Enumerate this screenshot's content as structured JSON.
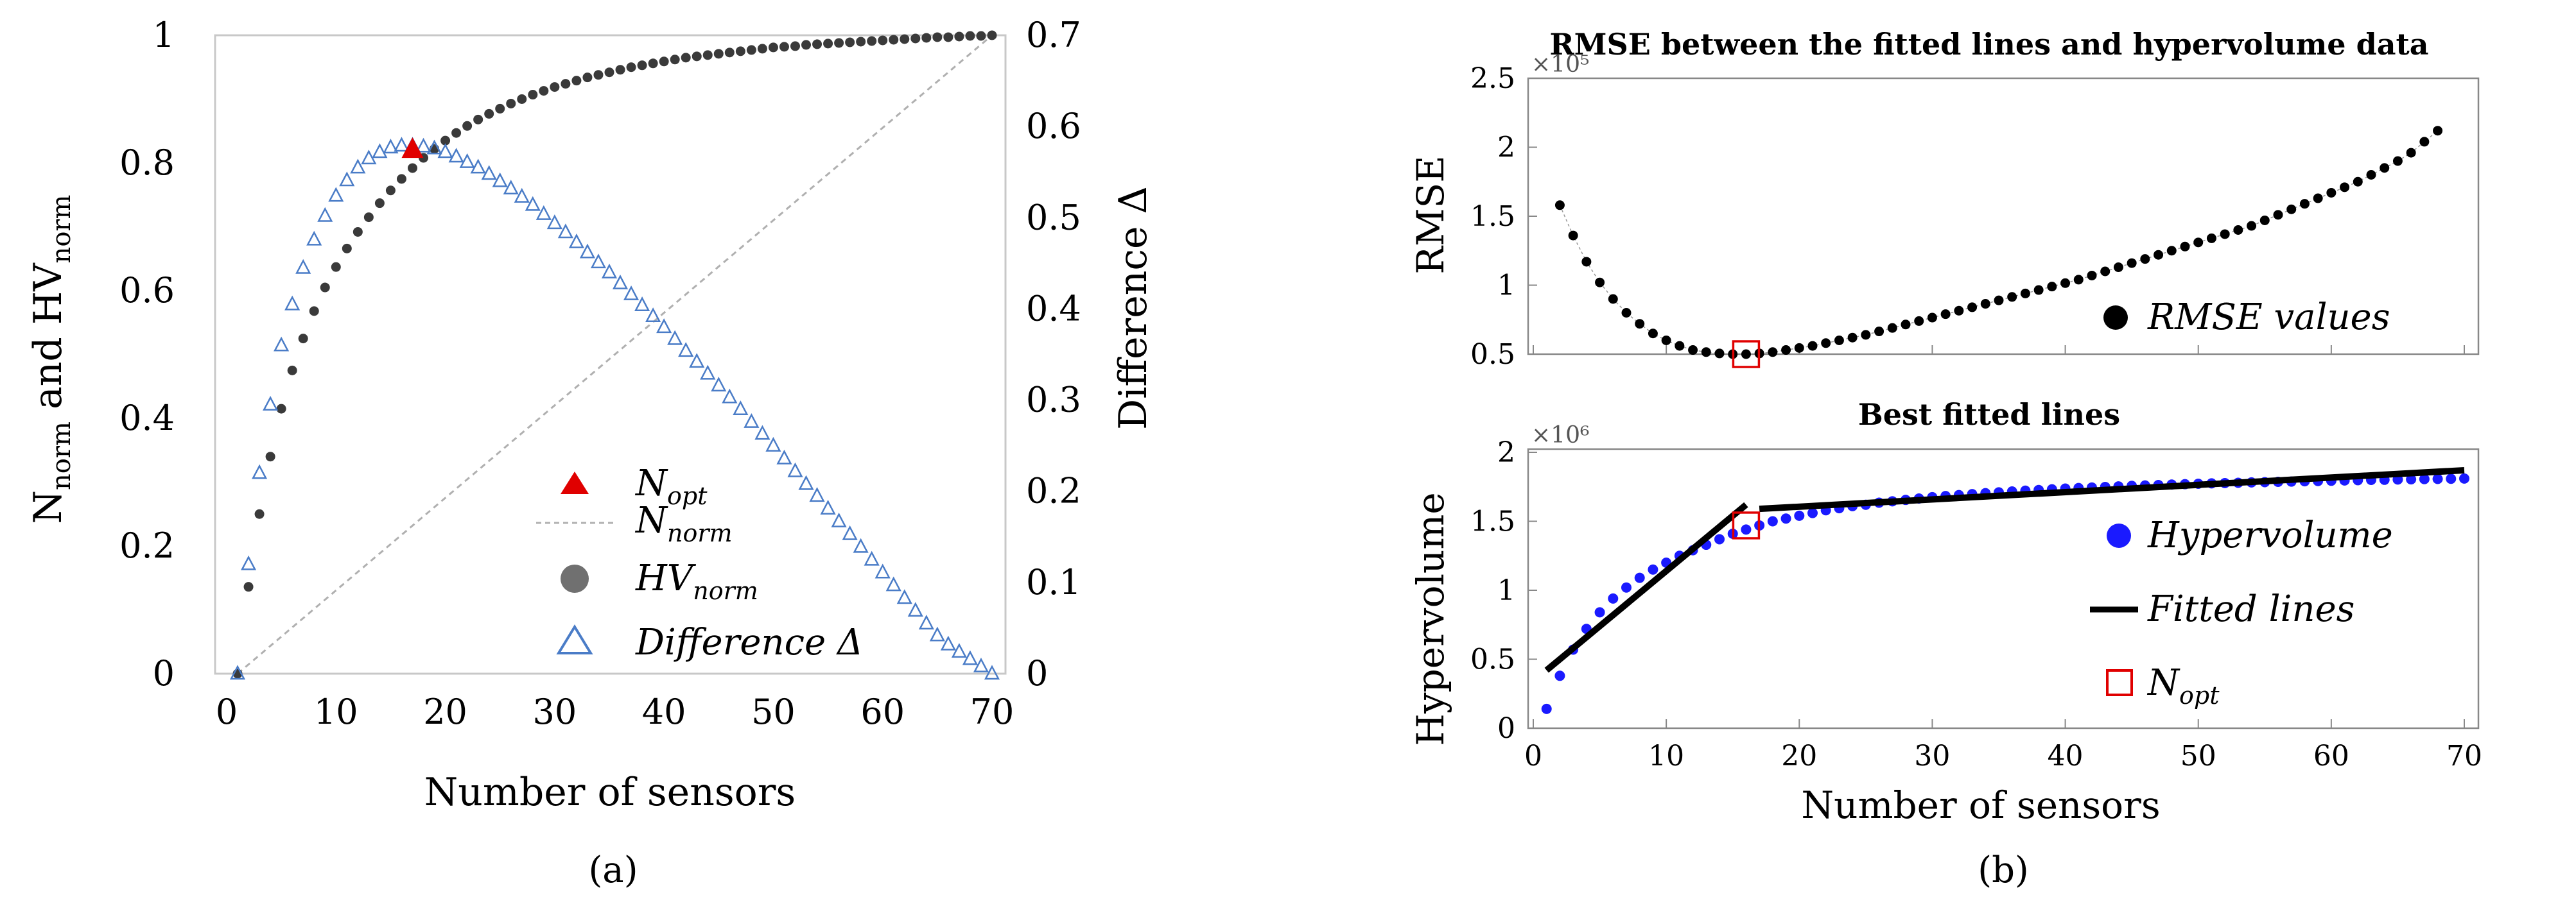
{
  "captions": {
    "a": "(a)",
    "b": "(b)"
  },
  "chart_data": [
    {
      "id": "a",
      "type": "scatter",
      "xlabel": "Number of sensors",
      "ylabel_left": {
        "base1": "N",
        "sub1": "norm",
        "mid": " and HV",
        "sub2": "norm"
      },
      "ylabel_right": "Difference Δ",
      "xlim": [
        0,
        70
      ],
      "ylim_left": [
        0,
        1
      ],
      "ylim_right": [
        0,
        0.7
      ],
      "xticks": [
        "0",
        "10",
        "20",
        "30",
        "40",
        "50",
        "60",
        "70"
      ],
      "yticks_left": [
        "0",
        "0.2",
        "0.4",
        "0.6",
        "0.8",
        "1"
      ],
      "yticks_right": [
        "0",
        "0.1",
        "0.2",
        "0.3",
        "0.4",
        "0.5",
        "0.6",
        "0.7"
      ],
      "legend": [
        {
          "key": "N",
          "sub": "opt"
        },
        {
          "key": "N",
          "sub": "norm"
        },
        {
          "key": "HV",
          "sub": "norm"
        },
        {
          "key": "Difference Δ",
          "sub": ""
        }
      ],
      "series": {
        "n_norm": {
          "x": [
            1,
            70
          ],
          "y": [
            0,
            1
          ],
          "color": "#b0b0b0"
        },
        "hv_norm": {
          "x": [
            1,
            2,
            3,
            4,
            5,
            6,
            7,
            8,
            9,
            10,
            11,
            12,
            13,
            14,
            15,
            16,
            17,
            18,
            19,
            20,
            21,
            22,
            23,
            24,
            25,
            26,
            27,
            28,
            29,
            30,
            31,
            32,
            33,
            34,
            35,
            36,
            37,
            38,
            39,
            40,
            41,
            42,
            43,
            44,
            45,
            46,
            47,
            48,
            49,
            50,
            51,
            52,
            53,
            54,
            55,
            56,
            57,
            58,
            59,
            60,
            61,
            62,
            63,
            64,
            65,
            66,
            67,
            68,
            69,
            70
          ],
          "y": [
            0,
            0.136,
            0.25,
            0.34,
            0.415,
            0.475,
            0.525,
            0.568,
            0.605,
            0.637,
            0.666,
            0.692,
            0.715,
            0.737,
            0.757,
            0.775,
            0.792,
            0.808,
            0.822,
            0.835,
            0.847,
            0.858,
            0.868,
            0.877,
            0.885,
            0.893,
            0.9,
            0.907,
            0.913,
            0.919,
            0.924,
            0.929,
            0.934,
            0.938,
            0.942,
            0.946,
            0.95,
            0.953,
            0.956,
            0.959,
            0.962,
            0.965,
            0.967,
            0.969,
            0.971,
            0.973,
            0.975,
            0.977,
            0.979,
            0.981,
            0.982,
            0.983,
            0.985,
            0.986,
            0.987,
            0.988,
            0.989,
            0.99,
            0.991,
            0.992,
            0.993,
            0.994,
            0.995,
            0.996,
            0.997,
            0.997,
            0.998,
            0.999,
            0.999,
            1.0
          ],
          "color": "#3a3a3a"
        },
        "difference": {
          "x": [
            1,
            2,
            3,
            4,
            5,
            6,
            7,
            8,
            9,
            10,
            11,
            12,
            13,
            14,
            15,
            16,
            17,
            18,
            19,
            20,
            21,
            22,
            23,
            24,
            25,
            26,
            27,
            28,
            29,
            30,
            31,
            32,
            33,
            34,
            35,
            36,
            37,
            38,
            39,
            40,
            41,
            42,
            43,
            44,
            45,
            46,
            47,
            48,
            49,
            50,
            51,
            52,
            53,
            54,
            55,
            56,
            57,
            58,
            59,
            60,
            61,
            62,
            63,
            64,
            65,
            66,
            67,
            68,
            69,
            70
          ],
          "y": [
            0,
            0.12,
            0.22,
            0.295,
            0.36,
            0.405,
            0.445,
            0.476,
            0.502,
            0.524,
            0.541,
            0.555,
            0.565,
            0.572,
            0.577,
            0.579,
            0.579,
            0.578,
            0.576,
            0.572,
            0.567,
            0.561,
            0.555,
            0.548,
            0.54,
            0.532,
            0.523,
            0.514,
            0.504,
            0.494,
            0.484,
            0.473,
            0.462,
            0.451,
            0.44,
            0.428,
            0.416,
            0.404,
            0.392,
            0.38,
            0.367,
            0.354,
            0.342,
            0.329,
            0.316,
            0.303,
            0.29,
            0.276,
            0.263,
            0.25,
            0.236,
            0.222,
            0.208,
            0.195,
            0.181,
            0.167,
            0.153,
            0.139,
            0.125,
            0.111,
            0.097,
            0.083,
            0.069,
            0.055,
            0.042,
            0.032,
            0.024,
            0.016,
            0.008,
            0.0
          ],
          "color": "#4a7cc7"
        },
        "n_opt": {
          "x": 17,
          "y": 0.82,
          "color": "#e00000"
        }
      }
    },
    {
      "id": "b-top",
      "type": "scatter",
      "title": "RMSE between the fitted lines and hypervolume data",
      "ylabel": "RMSE",
      "exponent": "×10⁵",
      "xlim": [
        0,
        70
      ],
      "ylim": [
        0.5,
        2.5
      ],
      "yticks": [
        "0.5",
        "1",
        "1.5",
        "2",
        "2.5"
      ],
      "legend": [
        "RMSE values"
      ],
      "series": {
        "rmse": {
          "x": [
            2,
            3,
            4,
            5,
            6,
            7,
            8,
            9,
            10,
            11,
            12,
            13,
            14,
            15,
            16,
            17,
            18,
            19,
            20,
            21,
            22,
            23,
            24,
            25,
            26,
            27,
            28,
            29,
            30,
            31,
            32,
            33,
            34,
            35,
            36,
            37,
            38,
            39,
            40,
            41,
            42,
            43,
            44,
            45,
            46,
            47,
            48,
            49,
            50,
            51,
            52,
            53,
            54,
            55,
            56,
            57,
            58,
            59,
            60,
            61,
            62,
            63,
            64,
            65,
            66,
            67,
            68
          ],
          "y": [
            1.58,
            1.36,
            1.17,
            1.02,
            0.9,
            0.8,
            0.72,
            0.65,
            0.6,
            0.56,
            0.53,
            0.515,
            0.505,
            0.5,
            0.5,
            0.505,
            0.515,
            0.53,
            0.545,
            0.56,
            0.58,
            0.6,
            0.62,
            0.64,
            0.665,
            0.69,
            0.715,
            0.74,
            0.765,
            0.79,
            0.815,
            0.84,
            0.865,
            0.89,
            0.915,
            0.94,
            0.965,
            0.99,
            1.015,
            1.04,
            1.07,
            1.1,
            1.13,
            1.16,
            1.19,
            1.22,
            1.25,
            1.28,
            1.31,
            1.34,
            1.37,
            1.4,
            1.43,
            1.47,
            1.51,
            1.55,
            1.59,
            1.63,
            1.67,
            1.71,
            1.75,
            1.8,
            1.85,
            1.9,
            1.96,
            2.04,
            2.12
          ],
          "color": "#000000"
        },
        "n_opt_marker": {
          "x": 16,
          "y": 0.5,
          "color": "#e00000"
        }
      }
    },
    {
      "id": "b-bottom",
      "type": "scatter",
      "title": "Best fitted lines",
      "ylabel": "Hypervolume",
      "xlabel": "Number of sensors",
      "exponent": "×10⁶",
      "xlim": [
        0,
        70
      ],
      "ylim": [
        0,
        2
      ],
      "xticks": [
        "0",
        "10",
        "20",
        "30",
        "40",
        "50",
        "60",
        "70"
      ],
      "yticks": [
        "0",
        "0.5",
        "1",
        "1.5",
        "2"
      ],
      "legend": [
        {
          "key": "Hypervolume",
          "sub": ""
        },
        {
          "key": "Fitted lines",
          "sub": ""
        },
        {
          "key": "N",
          "sub": "opt"
        }
      ],
      "series": {
        "hypervolume": {
          "x": [
            1,
            2,
            3,
            4,
            5,
            6,
            7,
            8,
            9,
            10,
            11,
            12,
            13,
            14,
            15,
            16,
            17,
            18,
            19,
            20,
            21,
            22,
            23,
            24,
            25,
            26,
            27,
            28,
            29,
            30,
            31,
            32,
            33,
            34,
            35,
            36,
            37,
            38,
            39,
            40,
            41,
            42,
            43,
            44,
            45,
            46,
            47,
            48,
            49,
            50,
            51,
            52,
            53,
            54,
            55,
            56,
            57,
            58,
            59,
            60,
            61,
            62,
            63,
            64,
            65,
            66,
            67,
            68,
            69,
            70
          ],
          "y": [
            0.14,
            0.38,
            0.57,
            0.72,
            0.84,
            0.94,
            1.02,
            1.09,
            1.15,
            1.2,
            1.25,
            1.29,
            1.33,
            1.37,
            1.41,
            1.44,
            1.47,
            1.5,
            1.52,
            1.54,
            1.56,
            1.58,
            1.595,
            1.61,
            1.62,
            1.635,
            1.645,
            1.655,
            1.665,
            1.675,
            1.683,
            1.69,
            1.697,
            1.704,
            1.71,
            1.716,
            1.722,
            1.727,
            1.732,
            1.737,
            1.741,
            1.745,
            1.749,
            1.753,
            1.757,
            1.76,
            1.763,
            1.766,
            1.769,
            1.772,
            1.775,
            1.777,
            1.779,
            1.782,
            1.784,
            1.786,
            1.788,
            1.79,
            1.792,
            1.794,
            1.796,
            1.798,
            1.8,
            1.801,
            1.803,
            1.804,
            1.806,
            1.807,
            1.808,
            1.81
          ],
          "color": "#1a1aff"
        },
        "fitted_lines": [
          {
            "x": [
              1,
              16
            ],
            "y": [
              0.42,
              1.62
            ]
          },
          {
            "x": [
              17,
              70
            ],
            "y": [
              1.59,
              1.87
            ]
          }
        ],
        "n_opt_marker": {
          "x": 16,
          "y": 1.47,
          "color": "#e00000"
        }
      }
    }
  ]
}
